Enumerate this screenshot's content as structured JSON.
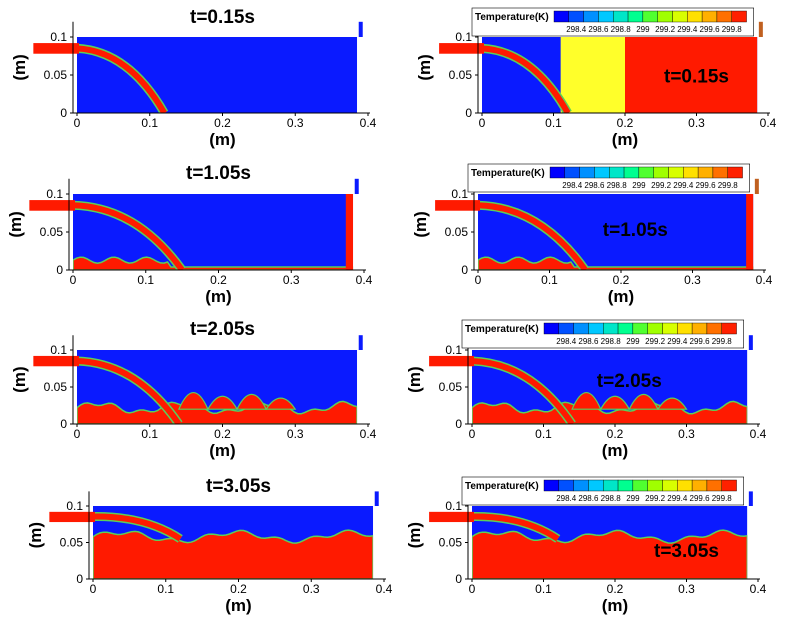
{
  "figure": {
    "axis": {
      "x_ticks": [
        "0",
        "0.1",
        "0.2",
        "0.3",
        "0.4"
      ],
      "y_ticks": [
        "0",
        "0.05",
        "0.1"
      ],
      "x_label": "(m)",
      "y_label": "(m)"
    },
    "temperature_legend": {
      "title": "Temperature(K)",
      "values": [
        "298.4",
        "298.6",
        "298.8",
        "299",
        "299.2",
        "299.4",
        "299.6",
        "299.8"
      ],
      "colors": [
        "#0000ff",
        "#0050ff",
        "#0090ff",
        "#00c8ff",
        "#00e6c8",
        "#00ff90",
        "#50ff30",
        "#a0ff00",
        "#d8ff00",
        "#ffe000",
        "#ffb000",
        "#ff7000",
        "#ff2000"
      ]
    },
    "colors": {
      "liquid": "#ff1a00",
      "gas": "#0a1aff",
      "interface": "#5ad05a",
      "warm": "#ffff2a"
    },
    "panels": [
      {
        "time": "t=0.15s",
        "field": "phase",
        "column": "left",
        "row": 0,
        "stage": 0
      },
      {
        "time": "t=0.15s",
        "field": "temperature",
        "column": "right",
        "row": 0,
        "stage": 0
      },
      {
        "time": "t=1.05s",
        "field": "phase",
        "column": "left",
        "row": 1,
        "stage": 1
      },
      {
        "time": "t=1.05s",
        "field": "temperature",
        "column": "right",
        "row": 1,
        "stage": 1
      },
      {
        "time": "t=2.05s",
        "field": "phase",
        "column": "left",
        "row": 2,
        "stage": 2
      },
      {
        "time": "t=2.05s",
        "field": "temperature",
        "column": "right",
        "row": 2,
        "stage": 2
      },
      {
        "time": "t=3.05s",
        "field": "phase",
        "column": "left",
        "row": 3,
        "stage": 3
      },
      {
        "time": "t=3.05s",
        "field": "temperature",
        "column": "right",
        "row": 3,
        "stage": 3
      }
    ]
  }
}
